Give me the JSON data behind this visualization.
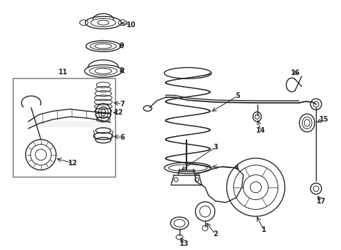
{
  "bg_color": "#ffffff",
  "line_color": "#222222",
  "label_color": "#000000",
  "fs": 7,
  "figsize": [
    4.9,
    3.6
  ],
  "dpi": 100
}
